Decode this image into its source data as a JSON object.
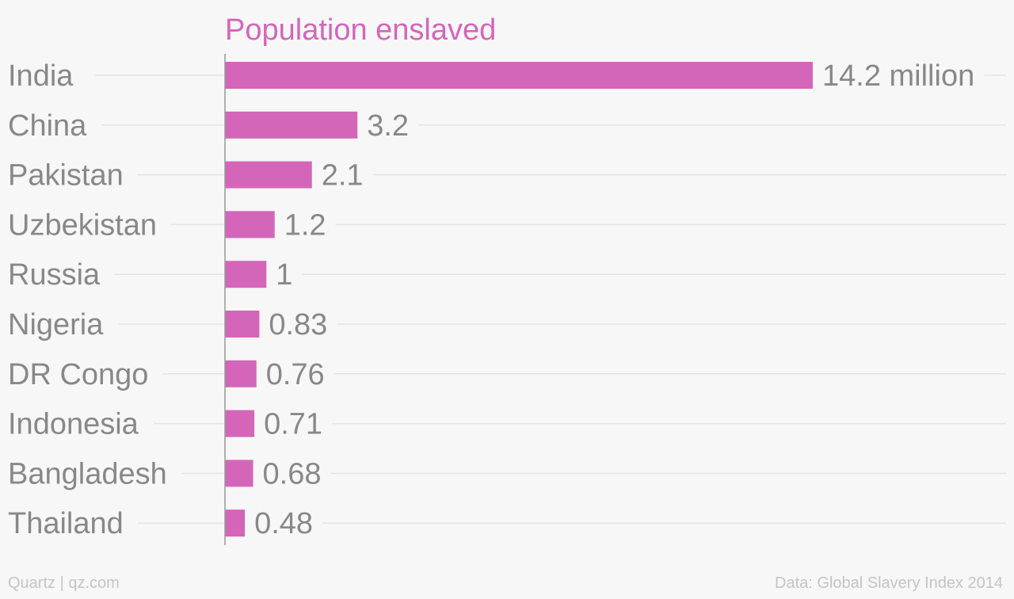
{
  "chart_data": {
    "type": "bar",
    "orientation": "horizontal",
    "title": "Population enslaved",
    "unit_label": "million",
    "categories": [
      "India",
      "China",
      "Pakistan",
      "Uzbekistan",
      "Russia",
      "Nigeria",
      "DR Congo",
      "Indonesia",
      "Bangladesh",
      "Thailand"
    ],
    "values": [
      14.2,
      3.2,
      2.1,
      1.2,
      1,
      0.83,
      0.76,
      0.71,
      0.68,
      0.48
    ],
    "value_labels": [
      "14.2 million",
      "3.2",
      "2.1",
      "1.2",
      "1",
      "0.83",
      "0.76",
      "0.71",
      "0.68",
      "0.48"
    ],
    "xlim": [
      0,
      14.2
    ],
    "grid": true,
    "colors": {
      "bar": "#d366b9",
      "title": "#d366b9",
      "label": "#888888",
      "grid": "#e3e3e3",
      "axis": "#999999"
    }
  },
  "footer": {
    "source_left": "Quartz | qz.com",
    "source_right": "Data: Global Slavery Index 2014"
  }
}
